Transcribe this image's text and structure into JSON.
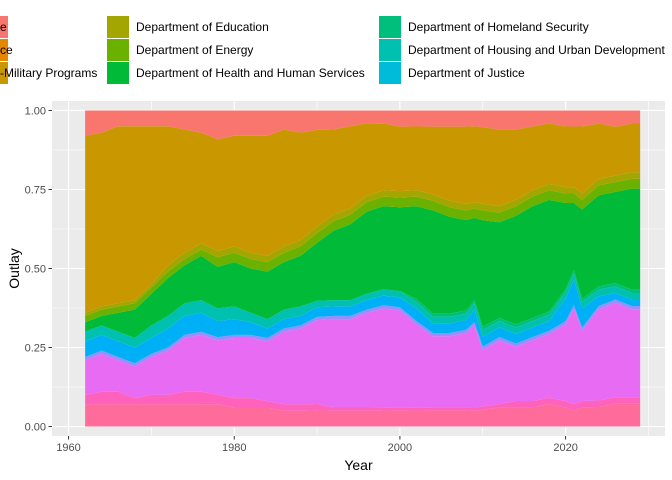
{
  "chart_data": {
    "type": "area",
    "stacked": "fill",
    "xlabel": "Year",
    "ylabel": "Outlay",
    "xlim": [
      1958,
      2032
    ],
    "ylim": [
      -0.03,
      1.03
    ],
    "x_ticks": [
      1960,
      1980,
      2000,
      2020
    ],
    "y_ticks": [
      0.0,
      0.25,
      0.5,
      0.75,
      1.0
    ],
    "y_tick_labels": [
      "0.00",
      "0.25",
      "0.50",
      "0.75",
      "1.00"
    ],
    "grid": true,
    "legend_position": "top",
    "legend": [
      {
        "label": "e",
        "color": "#F8766D"
      },
      {
        "label": "ce",
        "color": "#E58700"
      },
      {
        "label": "-Military Programs",
        "color": "#C99800"
      },
      {
        "label": "Department of Education",
        "color": "#A3A500"
      },
      {
        "label": "Department of Energy",
        "color": "#6BB100"
      },
      {
        "label": "Department of Health and Human Services",
        "color": "#00BA38"
      },
      {
        "label": "Department of Homeland Security",
        "color": "#00BF7D"
      },
      {
        "label": "Department of Housing and Urban Development",
        "color": "#00C0AF"
      },
      {
        "label": "Department of Justice",
        "color": "#00BCD8"
      }
    ],
    "x": [
      1962,
      1964,
      1966,
      1968,
      1970,
      1972,
      1974,
      1976,
      1978,
      1980,
      1982,
      1984,
      1986,
      1988,
      1990,
      1992,
      1994,
      1996,
      1998,
      2000,
      2002,
      2004,
      2006,
      2008,
      2009,
      2010,
      2012,
      2014,
      2016,
      2018,
      2020,
      2021,
      2022,
      2024,
      2026,
      2028,
      2029
    ],
    "series": [
      {
        "color": "#FF6C9C",
        "values": [
          0.07,
          0.07,
          0.07,
          0.07,
          0.07,
          0.07,
          0.07,
          0.07,
          0.07,
          0.06,
          0.06,
          0.06,
          0.05,
          0.05,
          0.05,
          0.05,
          0.05,
          0.05,
          0.05,
          0.05,
          0.05,
          0.05,
          0.05,
          0.05,
          0.05,
          0.05,
          0.06,
          0.06,
          0.06,
          0.07,
          0.06,
          0.05,
          0.06,
          0.06,
          0.07,
          0.07,
          0.07
        ]
      },
      {
        "color": "#FF62BC",
        "values": [
          0.03,
          0.04,
          0.04,
          0.02,
          0.03,
          0.03,
          0.04,
          0.04,
          0.03,
          0.03,
          0.03,
          0.02,
          0.02,
          0.02,
          0.02,
          0.01,
          0.01,
          0.01,
          0.01,
          0.01,
          0.01,
          0.01,
          0.01,
          0.01,
          0.01,
          0.01,
          0.01,
          0.02,
          0.02,
          0.02,
          0.02,
          0.02,
          0.02,
          0.02,
          0.02,
          0.02,
          0.02
        ]
      },
      {
        "color": "#E76BF3",
        "values": [
          0.11,
          0.12,
          0.1,
          0.1,
          0.12,
          0.14,
          0.17,
          0.18,
          0.17,
          0.19,
          0.19,
          0.19,
          0.23,
          0.24,
          0.26,
          0.28,
          0.28,
          0.3,
          0.31,
          0.3,
          0.26,
          0.22,
          0.22,
          0.23,
          0.26,
          0.17,
          0.2,
          0.17,
          0.19,
          0.2,
          0.24,
          0.3,
          0.22,
          0.28,
          0.29,
          0.27,
          0.27
        ]
      },
      {
        "color": "#9590FF",
        "values": [
          0.01,
          0.01,
          0.01,
          0.01,
          0.01,
          0.01,
          0.01,
          0.01,
          0.01,
          0.01,
          0.01,
          0.01,
          0.01,
          0.01,
          0.01,
          0.01,
          0.01,
          0.01,
          0.01,
          0.01,
          0.01,
          0.01,
          0.01,
          0.01,
          0.01,
          0.01,
          0.01,
          0.01,
          0.01,
          0.01,
          0.01,
          0.01,
          0.01,
          0.01,
          0.01,
          0.01,
          0.01
        ]
      },
      {
        "color": "#00B0F6",
        "values": [
          0.05,
          0.05,
          0.05,
          0.05,
          0.05,
          0.06,
          0.06,
          0.06,
          0.05,
          0.05,
          0.04,
          0.03,
          0.03,
          0.03,
          0.03,
          0.03,
          0.03,
          0.03,
          0.03,
          0.03,
          0.04,
          0.03,
          0.03,
          0.03,
          0.04,
          0.03,
          0.03,
          0.03,
          0.03,
          0.03,
          0.07,
          0.08,
          0.06,
          0.03,
          0.02,
          0.02,
          0.02
        ]
      },
      {
        "color": "#00BCD8",
        "values": [
          0.0,
          0.0,
          0.0,
          0.0,
          0.0,
          0.0,
          0.0,
          0.0,
          0.0,
          0.0,
          0.0,
          0.0,
          0.0,
          0.0,
          0.0,
          0.0,
          0.0,
          0.0,
          0.0,
          0.0,
          0.0,
          0.0,
          0.0,
          0.0,
          0.0,
          0.0,
          0.0,
          0.0,
          0.0,
          0.0,
          0.0,
          0.0,
          0.0,
          0.0,
          0.0,
          0.0,
          0.0
        ]
      },
      {
        "color": "#00C0AF",
        "values": [
          0.03,
          0.03,
          0.03,
          0.03,
          0.04,
          0.04,
          0.04,
          0.04,
          0.04,
          0.04,
          0.03,
          0.03,
          0.03,
          0.03,
          0.02,
          0.02,
          0.02,
          0.02,
          0.02,
          0.02,
          0.02,
          0.02,
          0.02,
          0.02,
          0.02,
          0.02,
          0.02,
          0.02,
          0.02,
          0.02,
          0.02,
          0.02,
          0.02,
          0.02,
          0.02,
          0.02,
          0.02
        ]
      },
      {
        "color": "#00BF7D",
        "values": [
          0.0,
          0.0,
          0.0,
          0.0,
          0.0,
          0.0,
          0.0,
          0.0,
          0.0,
          0.0,
          0.0,
          0.0,
          0.0,
          0.0,
          0.0,
          0.0,
          0.0,
          0.0,
          0.0,
          0.0,
          0.01,
          0.01,
          0.01,
          0.01,
          0.01,
          0.01,
          0.01,
          0.01,
          0.01,
          0.01,
          0.01,
          0.01,
          0.01,
          0.01,
          0.01,
          0.01,
          0.01
        ]
      },
      {
        "color": "#00BA38",
        "values": [
          0.03,
          0.03,
          0.06,
          0.09,
          0.1,
          0.12,
          0.12,
          0.14,
          0.13,
          0.14,
          0.14,
          0.15,
          0.15,
          0.16,
          0.18,
          0.22,
          0.24,
          0.26,
          0.26,
          0.26,
          0.29,
          0.32,
          0.3,
          0.28,
          0.26,
          0.32,
          0.3,
          0.34,
          0.35,
          0.35,
          0.27,
          0.21,
          0.28,
          0.28,
          0.28,
          0.31,
          0.31
        ]
      },
      {
        "color": "#6BB100",
        "values": [
          0.02,
          0.02,
          0.02,
          0.02,
          0.02,
          0.02,
          0.02,
          0.02,
          0.03,
          0.03,
          0.03,
          0.03,
          0.03,
          0.03,
          0.03,
          0.03,
          0.03,
          0.03,
          0.03,
          0.03,
          0.03,
          0.03,
          0.03,
          0.03,
          0.03,
          0.03,
          0.03,
          0.03,
          0.03,
          0.03,
          0.03,
          0.03,
          0.03,
          0.03,
          0.03,
          0.03,
          0.03
        ]
      },
      {
        "color": "#A3A500",
        "values": [
          0.01,
          0.01,
          0.01,
          0.01,
          0.01,
          0.02,
          0.02,
          0.02,
          0.02,
          0.02,
          0.02,
          0.02,
          0.02,
          0.02,
          0.02,
          0.02,
          0.02,
          0.02,
          0.02,
          0.02,
          0.02,
          0.02,
          0.02,
          0.02,
          0.02,
          0.02,
          0.02,
          0.02,
          0.02,
          0.02,
          0.02,
          0.02,
          0.02,
          0.02,
          0.02,
          0.02,
          0.02
        ]
      },
      {
        "color": "#C99800",
        "values": [
          0.56,
          0.55,
          0.56,
          0.55,
          0.5,
          0.44,
          0.39,
          0.35,
          0.35,
          0.35,
          0.37,
          0.38,
          0.37,
          0.34,
          0.3,
          0.27,
          0.26,
          0.23,
          0.21,
          0.2,
          0.2,
          0.21,
          0.23,
          0.24,
          0.24,
          0.23,
          0.24,
          0.22,
          0.2,
          0.19,
          0.19,
          0.19,
          0.21,
          0.17,
          0.15,
          0.15,
          0.15
        ]
      },
      {
        "color": "#E58700",
        "values": [
          0.0,
          0.0,
          0.0,
          0.0,
          0.0,
          0.0,
          0.0,
          0.0,
          0.0,
          0.0,
          0.0,
          0.0,
          0.0,
          0.0,
          0.0,
          0.0,
          0.0,
          0.0,
          0.0,
          0.0,
          0.0,
          0.0,
          0.0,
          0.0,
          0.0,
          0.0,
          0.0,
          0.0,
          0.0,
          0.0,
          0.0,
          0.0,
          0.0,
          0.0,
          0.0,
          0.0,
          0.0
        ]
      },
      {
        "color": "#F8766D",
        "values": [
          0.08,
          0.07,
          0.05,
          0.05,
          0.05,
          0.05,
          0.06,
          0.07,
          0.09,
          0.08,
          0.08,
          0.08,
          0.06,
          0.07,
          0.06,
          0.06,
          0.05,
          0.04,
          0.04,
          0.05,
          0.05,
          0.05,
          0.05,
          0.05,
          0.05,
          0.05,
          0.06,
          0.06,
          0.05,
          0.04,
          0.05,
          0.05,
          0.05,
          0.04,
          0.05,
          0.04,
          0.04
        ]
      }
    ]
  }
}
